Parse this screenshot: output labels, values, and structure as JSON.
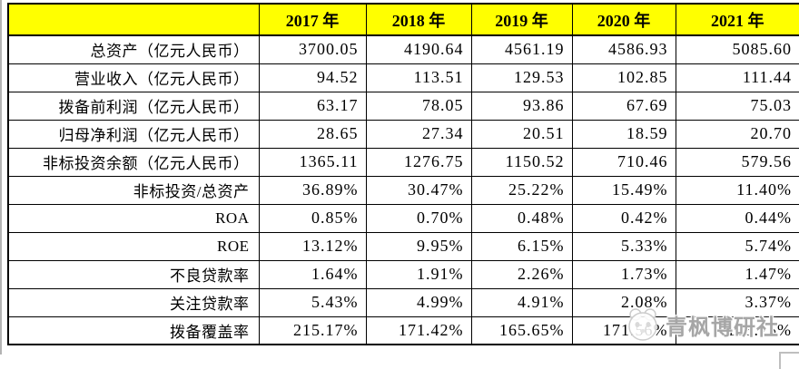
{
  "table": {
    "corner_label": "",
    "header_bg": "#ffff00",
    "border_color": "#000000",
    "columns": [
      "2017 年",
      "2018 年",
      "2019 年",
      "2020 年",
      "2021 年"
    ],
    "rows": [
      {
        "label": "总资产（亿元人民币）",
        "values": [
          "3700.05",
          "4190.64",
          "4561.19",
          "4586.93",
          "5085.60"
        ]
      },
      {
        "label": "营业收入（亿元人民币）",
        "values": [
          "94.52",
          "113.51",
          "129.53",
          "102.85",
          "111.44"
        ]
      },
      {
        "label": "拨备前利润（亿元人民币）",
        "values": [
          "63.17",
          "78.05",
          "93.86",
          "67.69",
          "75.03"
        ]
      },
      {
        "label": "归母净利润（亿元人民币）",
        "values": [
          "28.65",
          "27.34",
          "20.51",
          "18.59",
          "20.70"
        ]
      },
      {
        "label": "非标投资余额（亿元人民币）",
        "values": [
          "1365.11",
          "1276.75",
          "1150.52",
          "710.46",
          "579.56"
        ]
      },
      {
        "label": "非标投资/总资产",
        "values": [
          "36.89%",
          "30.47%",
          "25.22%",
          "15.49%",
          "11.40%"
        ]
      },
      {
        "label": "ROA",
        "values": [
          "0.85%",
          "0.70%",
          "0.48%",
          "0.42%",
          "0.44%"
        ]
      },
      {
        "label": "ROE",
        "values": [
          "13.12%",
          "9.95%",
          "6.15%",
          "5.33%",
          "5.74%"
        ]
      },
      {
        "label": "不良贷款率",
        "values": [
          "1.64%",
          "1.91%",
          "2.26%",
          "1.73%",
          "1.47%"
        ]
      },
      {
        "label": "关注贷款率",
        "values": [
          "5.43%",
          "4.99%",
          "4.91%",
          "2.08%",
          "3.37%"
        ]
      },
      {
        "label": "拨备覆盖率",
        "values": [
          "215.17%",
          "171.42%",
          "165.65%",
          "171.56%",
          "188.25%"
        ]
      }
    ]
  },
  "watermark": {
    "text": "青枫博研社"
  },
  "chart_data": {
    "type": "table",
    "title": "",
    "categories": [
      "2017 年",
      "2018 年",
      "2019 年",
      "2020 年",
      "2021 年"
    ],
    "series": [
      {
        "name": "总资产（亿元人民币）",
        "values": [
          3700.05,
          4190.64,
          4561.19,
          4586.93,
          5085.6
        ]
      },
      {
        "name": "营业收入（亿元人民币）",
        "values": [
          94.52,
          113.51,
          129.53,
          102.85,
          111.44
        ]
      },
      {
        "name": "拨备前利润（亿元人民币）",
        "values": [
          63.17,
          78.05,
          93.86,
          67.69,
          75.03
        ]
      },
      {
        "name": "归母净利润（亿元人民币）",
        "values": [
          28.65,
          27.34,
          20.51,
          18.59,
          20.7
        ]
      },
      {
        "name": "非标投资余额（亿元人民币）",
        "values": [
          1365.11,
          1276.75,
          1150.52,
          710.46,
          579.56
        ]
      },
      {
        "name": "非标投资/总资产 (%)",
        "values": [
          36.89,
          30.47,
          25.22,
          15.49,
          11.4
        ]
      },
      {
        "name": "ROA (%)",
        "values": [
          0.85,
          0.7,
          0.48,
          0.42,
          0.44
        ]
      },
      {
        "name": "ROE (%)",
        "values": [
          13.12,
          9.95,
          6.15,
          5.33,
          5.74
        ]
      },
      {
        "name": "不良贷款率 (%)",
        "values": [
          1.64,
          1.91,
          2.26,
          1.73,
          1.47
        ]
      },
      {
        "name": "关注贷款率 (%)",
        "values": [
          5.43,
          4.99,
          4.91,
          2.08,
          3.37
        ]
      },
      {
        "name": "拨备覆盖率 (%)",
        "values": [
          215.17,
          171.42,
          165.65,
          171.56,
          188.25
        ]
      }
    ]
  }
}
